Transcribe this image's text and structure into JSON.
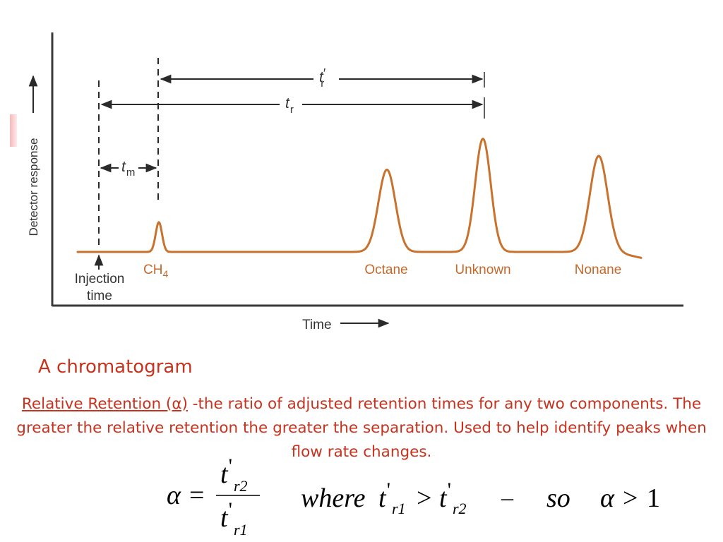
{
  "diagram": {
    "axis_y_label": "Detector response",
    "axis_x_label": "Time",
    "injection_label": "Injection time",
    "injection_line1": "Injection",
    "injection_line2": "time",
    "dims": {
      "t_adj": {
        "main": "t",
        "prime": "′",
        "sub": "r"
      },
      "t_r": {
        "main": "t",
        "sub": "r"
      },
      "t_m": {
        "main": "t",
        "sub": "m"
      }
    },
    "peaks": [
      {
        "label_main": "CH",
        "label_sub": "4",
        "relative_height": 0.26
      },
      {
        "label_main": "Octane",
        "label_sub": "",
        "relative_height": 0.72
      },
      {
        "label_main": "Unknown",
        "label_sub": "",
        "relative_height": 0.99
      },
      {
        "label_main": "Nonane",
        "label_sub": "",
        "relative_height": 0.84
      }
    ],
    "colors": {
      "trace": "#c8722e",
      "peak_labels": "#c4692b",
      "axes": "#3a3a3a"
    }
  },
  "caption": "A chromatogram",
  "definition": {
    "term": "Relative Retention (α)",
    "text": " -the ratio of adjusted retention times for any two components.  The greater the relative retention the greater the separation.  Used to help identify peaks when flow rate changes.",
    "color": "#c8321e"
  },
  "formula": {
    "lhs": "α",
    "equals": "=",
    "numerator": {
      "t": "t",
      "prime": "'",
      "sub": "r2"
    },
    "denominator": {
      "t": "t",
      "prime": "'",
      "sub": "r1"
    },
    "where": "where",
    "cond_left": {
      "t": "t",
      "prime": "'",
      "sub": "r1"
    },
    "gt": ">",
    "cond_right": {
      "t": "t",
      "prime": "'",
      "sub": "r2"
    },
    "dash": "–",
    "so": "so",
    "final_alpha": "α",
    "final_gt": ">",
    "final_one": "1"
  }
}
